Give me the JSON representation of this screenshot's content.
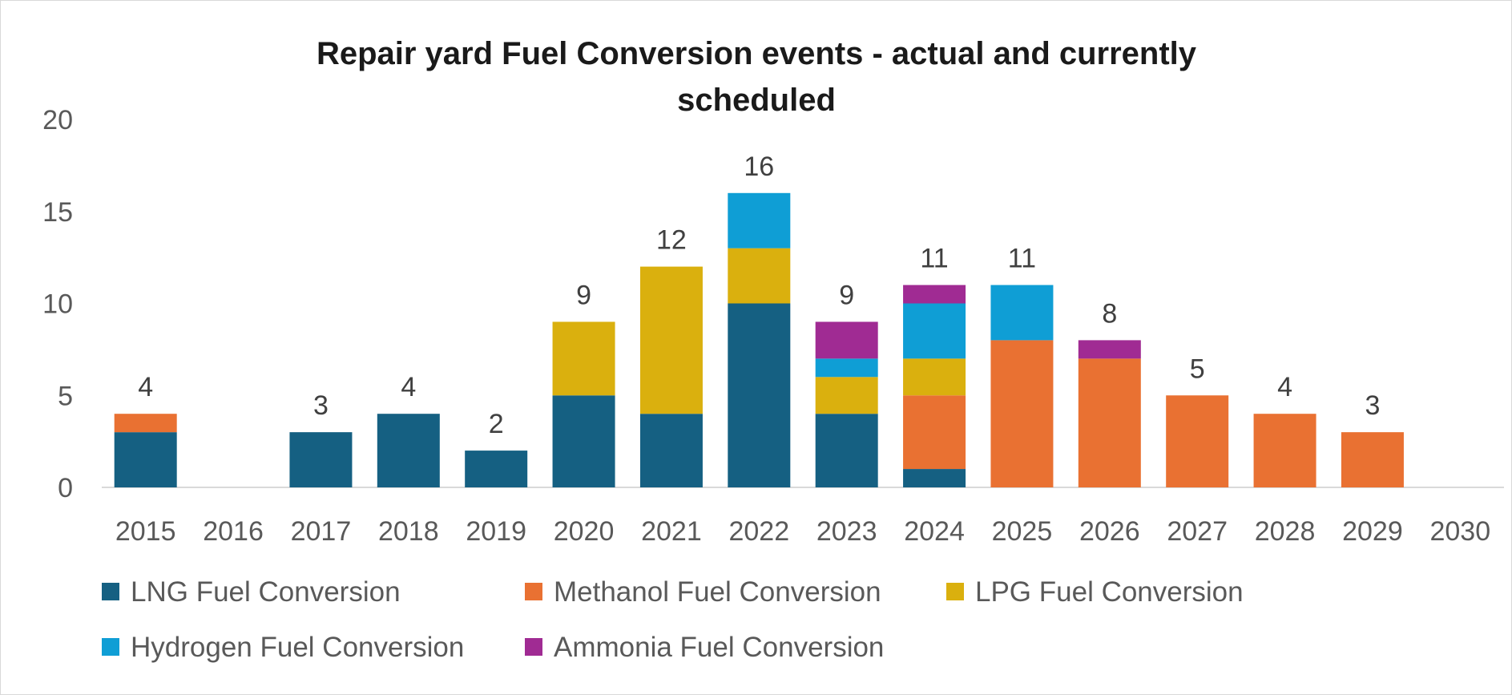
{
  "chart_data": {
    "type": "bar",
    "stacked": true,
    "title_lines": [
      "Repair yard Fuel Conversion events - actual and currently",
      "scheduled"
    ],
    "xlabel": "",
    "ylabel": "",
    "ylim": [
      0,
      20
    ],
    "yticks": [
      0,
      5,
      10,
      15,
      20
    ],
    "grid": false,
    "legend_position": "bottom",
    "categories": [
      "2015",
      "2016",
      "2017",
      "2018",
      "2019",
      "2020",
      "2021",
      "2022",
      "2023",
      "2024",
      "2025",
      "2026",
      "2027",
      "2028",
      "2029",
      "2030"
    ],
    "totals": [
      4,
      null,
      3,
      4,
      2,
      9,
      12,
      16,
      9,
      11,
      11,
      8,
      5,
      4,
      3,
      null
    ],
    "series": [
      {
        "name": "LNG Fuel Conversion",
        "color": "#156082",
        "values": [
          3,
          0,
          3,
          4,
          2,
          5,
          4,
          10,
          4,
          1,
          0,
          0,
          0,
          0,
          0,
          0
        ]
      },
      {
        "name": "Methanol Fuel Conversion",
        "color": "#E97132",
        "values": [
          1,
          0,
          0,
          0,
          0,
          0,
          0,
          0,
          0,
          4,
          8,
          7,
          5,
          4,
          3,
          0
        ]
      },
      {
        "name": "LPG Fuel Conversion",
        "color": "#DAB00E",
        "values": [
          0,
          0,
          0,
          0,
          0,
          4,
          8,
          3,
          2,
          2,
          0,
          0,
          0,
          0,
          0,
          0
        ]
      },
      {
        "name": "Hydrogen Fuel Conversion",
        "color": "#0F9ED5",
        "values": [
          0,
          0,
          0,
          0,
          0,
          0,
          0,
          3,
          1,
          3,
          3,
          0,
          0,
          0,
          0,
          0
        ]
      },
      {
        "name": "Ammonia Fuel Conversion",
        "color": "#A02B93",
        "values": [
          0,
          0,
          0,
          0,
          0,
          0,
          0,
          0,
          2,
          1,
          0,
          1,
          0,
          0,
          0,
          0
        ]
      }
    ]
  }
}
